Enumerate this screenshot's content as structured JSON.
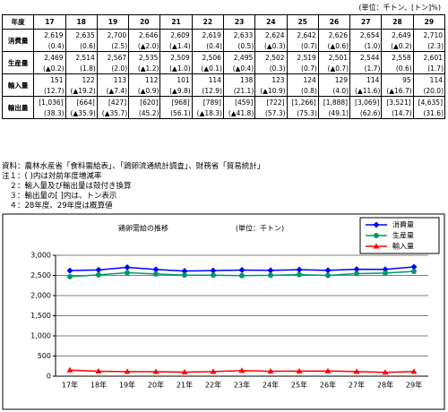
{
  "unit": "(単位：千トン、[トン]%)",
  "table": {
    "header": [
      "年度",
      "17",
      "18",
      "19",
      "20",
      "21",
      "22",
      "23",
      "24",
      "25",
      "26",
      "27",
      "28",
      "29"
    ],
    "rows": [
      {
        "label": "消費量",
        "values": [
          "2,619",
          "2,635",
          "2,700",
          "2,646",
          "2,609",
          "2,619",
          "2,633",
          "2,624",
          "2,642",
          "2,626",
          "2,654",
          "2,649",
          "2,710"
        ],
        "changes": [
          "(0.4)",
          "(0.6)",
          "(2.5)",
          "(▲2.0)",
          "(▲1.4)",
          "(0.4)",
          "(0.5)",
          "(▲0.3)",
          "(0.7)",
          "(▲0.6)",
          "(1.0)",
          "(▲0.2)",
          "(2.3)"
        ]
      },
      {
        "label": "生産量",
        "values": [
          "2,469",
          "2,514",
          "2,567",
          "2,535",
          "2,509",
          "2,506",
          "2,495",
          "2,502",
          "2,519",
          "2,501",
          "2,544",
          "2,558",
          "2,601"
        ],
        "changes": [
          "(▲0.2)",
          "(1.8)",
          "(2.0)",
          "(▲1.2)",
          "(▲1.0)",
          "(▲0.1)",
          "(▲0.4)",
          "(0.3)",
          "(0.7)",
          "(▲0.7)",
          "(1.7)",
          "(0.6)",
          "(1.7)"
        ]
      },
      {
        "label": "輸入量",
        "values": [
          "151",
          "122",
          "113",
          "112",
          "101",
          "114",
          "138",
          "123",
          "124",
          "129",
          "114",
          "95",
          "114"
        ],
        "changes": [
          "(12.7)",
          "(▲19.2)",
          "(▲7.4)",
          "(▲0.9)",
          "(▲9.8)",
          "(12.9)",
          "(21.1)",
          "(▲10.9)",
          "(0.8)",
          "(4.0)",
          "(▲11.6)",
          "(▲16.7)",
          "(20.0)"
        ]
      },
      {
        "label": "輸出量",
        "values": [
          "[1,036]",
          "[664]",
          "[427]",
          "[620]",
          "[968]",
          "[789]",
          "[459]",
          "[722]",
          "[1,266]",
          "[1,888]",
          "[3,069]",
          "[3,521]",
          "[4,635]"
        ],
        "changes": [
          "(38.3)",
          "(▲35.9)",
          "(▲35.7)",
          "(45.2)",
          "(56.1)",
          "(▲18.3)",
          "(▲41.8)",
          "(57.3)",
          "(75.3)",
          "(49.1)",
          "(62.6)",
          "(14.7)",
          "(31.6)"
        ]
      }
    ]
  },
  "notes": [
    "資料：農林水産省「食料需給表」、「鶏卵流通統計調査」、財務省「貿易統計」",
    "注１：( )内は対前年度増減率",
    "　２：輸入量及び輸出量は殻付き換算",
    "　３：輸出量の[ ]内は、トン表示",
    "　４：28年度、29年度は概算値"
  ],
  "chart_data": {
    "type": "line",
    "title": "鶏卵需給の推移",
    "subtitle": "(単位：千トン)",
    "categories": [
      "17年",
      "18年",
      "19年",
      "20年",
      "21年",
      "22年",
      "23年",
      "24年",
      "25年",
      "26年",
      "27年",
      "28年",
      "29年"
    ],
    "series": [
      {
        "name": "消費量",
        "color": "#0000ff",
        "marker": "diamond",
        "values": [
          2619,
          2635,
          2700,
          2646,
          2609,
          2619,
          2633,
          2624,
          2642,
          2626,
          2654,
          2649,
          2710
        ]
      },
      {
        "name": "生産量",
        "color": "#009966",
        "marker": "circle",
        "values": [
          2469,
          2514,
          2567,
          2535,
          2509,
          2506,
          2495,
          2502,
          2519,
          2501,
          2544,
          2558,
          2601
        ]
      },
      {
        "name": "輸入量",
        "color": "#ff0000",
        "marker": "triangle",
        "values": [
          151,
          122,
          113,
          112,
          101,
          114,
          138,
          123,
          124,
          129,
          114,
          95,
          114
        ]
      }
    ],
    "ylim": [
      0,
      3000
    ],
    "yticks": [
      0,
      500,
      {
        "value": 1000,
        "label": "1,000"
      },
      {
        "value": 1500,
        "label": "1,500"
      },
      {
        "value": 2000,
        "label": "2,000"
      },
      {
        "value": 2500,
        "label": "2,500"
      },
      {
        "value": 3000,
        "label": "3,000"
      }
    ],
    "grid": true,
    "legend": "top-right"
  }
}
